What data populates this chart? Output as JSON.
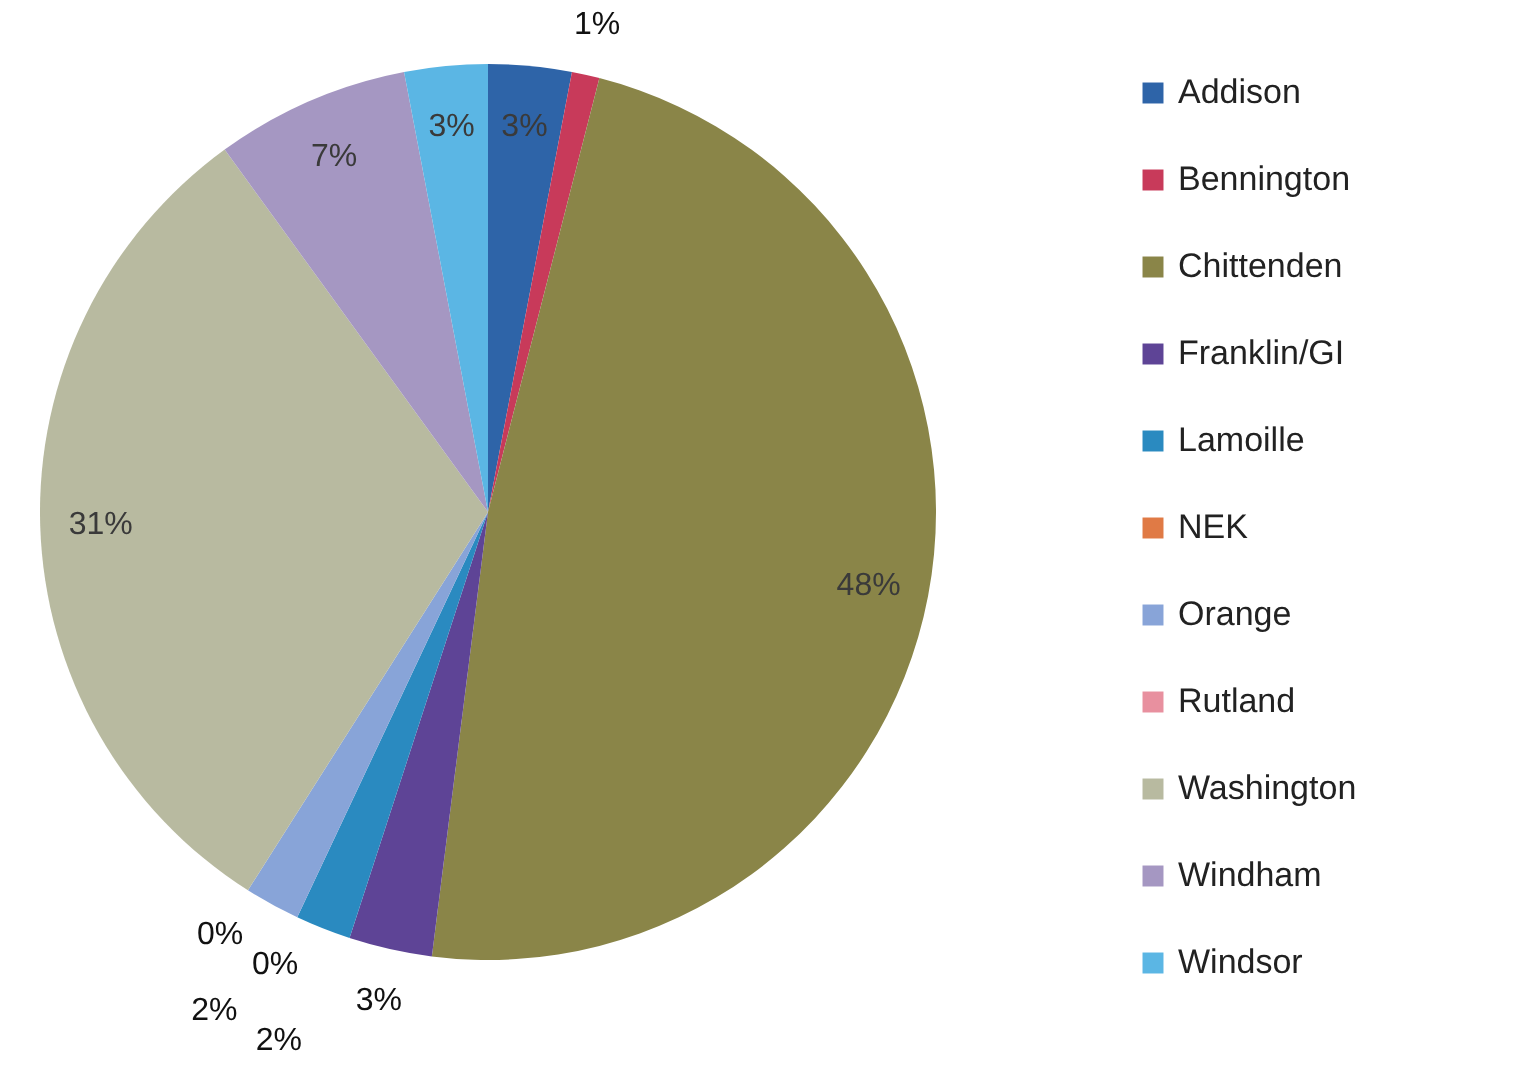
{
  "chart_data": {
    "type": "pie",
    "categories": [
      "Addison",
      "Bennington",
      "Chittenden",
      "Franklin/GI",
      "Lamoille",
      "NEK",
      "Orange",
      "Rutland",
      "Washington",
      "Windham",
      "Windsor"
    ],
    "values": [
      3,
      1,
      48,
      3,
      2,
      0,
      2,
      0,
      31,
      7,
      3
    ],
    "colors": [
      "#2e64a8",
      "#c83a5a",
      "#8a8548",
      "#5e4496",
      "#2a8ac0",
      "#e07a45",
      "#88a4d8",
      "#e8909f",
      "#b8baa0",
      "#a597c2",
      "#5bb6e4"
    ],
    "value_labels": [
      "3%",
      "1%",
      "48%",
      "3%",
      "2%",
      "0%",
      "2%",
      "0%",
      "31%",
      "7%",
      "3%"
    ],
    "legend": "right"
  }
}
